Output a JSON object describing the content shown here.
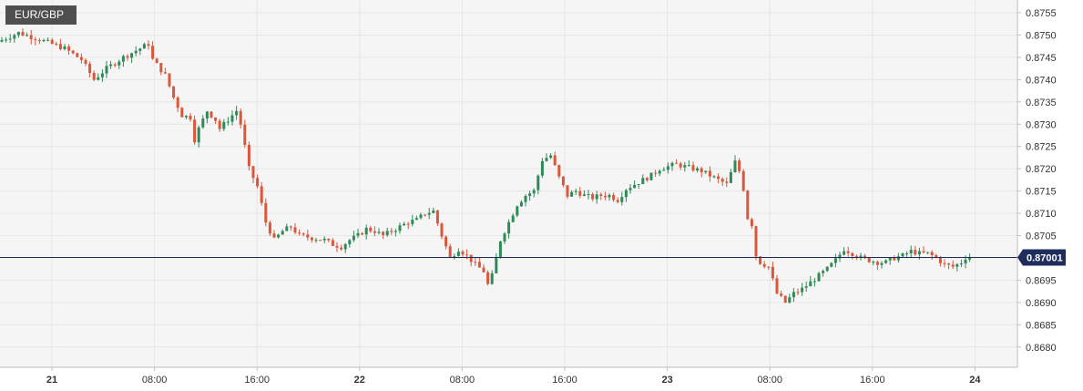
{
  "header": {
    "symbol": "EUR/GBP"
  },
  "chart_data": {
    "type": "candlestick",
    "title": "EUR/GBP",
    "y_ticks": [
      "0.8755",
      "0.8750",
      "0.8745",
      "0.8740",
      "0.8735",
      "0.8730",
      "0.8725",
      "0.8720",
      "0.8715",
      "0.8710",
      "0.8705",
      "0.8700",
      "0.8695",
      "0.8690",
      "0.8685",
      "0.8680"
    ],
    "x_ticks": [
      {
        "label": "21",
        "bold": true
      },
      {
        "label": "08:00",
        "bold": false
      },
      {
        "label": "16:00",
        "bold": false
      },
      {
        "label": "22",
        "bold": true
      },
      {
        "label": "08:00",
        "bold": false
      },
      {
        "label": "16:00",
        "bold": false
      },
      {
        "label": "23",
        "bold": true
      },
      {
        "label": "08:00",
        "bold": false
      },
      {
        "label": "16:00",
        "bold": false
      },
      {
        "label": "24",
        "bold": true
      }
    ],
    "current_price": "0.87001",
    "current_value": 0.87001,
    "ylim": [
      0.8677,
      0.8758
    ],
    "colors": {
      "up": "#2e8b57",
      "down": "#d9573b",
      "line": "#1f2d5c",
      "grid": "#e6e6e6",
      "bg": "#f5f5f5"
    },
    "price_path": [
      [
        0,
        0.87485
      ],
      [
        5,
        0.87505
      ],
      [
        10,
        0.8749
      ],
      [
        16,
        0.8747
      ],
      [
        20,
        0.87445
      ],
      [
        23,
        0.874
      ],
      [
        26,
        0.87425
      ],
      [
        30,
        0.8745
      ],
      [
        33,
        0.87465
      ],
      [
        36,
        0.8748
      ],
      [
        37,
        0.87445
      ],
      [
        40,
        0.8741
      ],
      [
        42,
        0.8736
      ],
      [
        44,
        0.8732
      ],
      [
        46,
        0.87315
      ],
      [
        47,
        0.87265
      ],
      [
        48,
        0.8729
      ],
      [
        50,
        0.8733
      ],
      [
        52,
        0.8731
      ],
      [
        53,
        0.8729
      ],
      [
        55,
        0.8731
      ],
      [
        57,
        0.8733
      ],
      [
        58,
        0.873
      ],
      [
        60,
        0.872
      ],
      [
        62,
        0.8716
      ],
      [
        64,
        0.8708
      ],
      [
        66,
        0.8704
      ],
      [
        68,
        0.8706
      ],
      [
        70,
        0.8707
      ],
      [
        72,
        0.8705
      ],
      [
        75,
        0.87045
      ],
      [
        78,
        0.8704
      ],
      [
        80,
        0.8703
      ],
      [
        82,
        0.87025
      ],
      [
        84,
        0.8704
      ],
      [
        86,
        0.8705
      ],
      [
        88,
        0.87065
      ],
      [
        90,
        0.8706
      ],
      [
        92,
        0.8705
      ],
      [
        94,
        0.8706
      ],
      [
        96,
        0.8707
      ],
      [
        98,
        0.8708
      ],
      [
        100,
        0.87085
      ],
      [
        102,
        0.871
      ],
      [
        104,
        0.87105
      ],
      [
        106,
        0.8705
      ],
      [
        108,
        0.87
      ],
      [
        110,
        0.8702
      ],
      [
        112,
        0.87005
      ],
      [
        114,
        0.86985
      ],
      [
        116,
        0.8697
      ],
      [
        117,
        0.8694
      ],
      [
        118,
        0.8696
      ],
      [
        120,
        0.8704
      ],
      [
        122,
        0.8708
      ],
      [
        124,
        0.8712
      ],
      [
        126,
        0.8714
      ],
      [
        128,
        0.8715
      ],
      [
        130,
        0.8722
      ],
      [
        132,
        0.8723
      ],
      [
        134,
        0.8718
      ],
      [
        136,
        0.8714
      ],
      [
        138,
        0.8715
      ],
      [
        140,
        0.8714
      ],
      [
        142,
        0.87135
      ],
      [
        144,
        0.8714
      ],
      [
        146,
        0.8714
      ],
      [
        148,
        0.8713
      ],
      [
        150,
        0.87155
      ],
      [
        152,
        0.87165
      ],
      [
        154,
        0.87175
      ],
      [
        156,
        0.87185
      ],
      [
        158,
        0.872
      ],
      [
        160,
        0.87205
      ],
      [
        162,
        0.8721
      ],
      [
        164,
        0.87205
      ],
      [
        166,
        0.872
      ],
      [
        168,
        0.87195
      ],
      [
        170,
        0.87185
      ],
      [
        172,
        0.87175
      ],
      [
        174,
        0.87165
      ],
      [
        176,
        0.87215
      ],
      [
        177,
        0.87195
      ],
      [
        178,
        0.87155
      ],
      [
        179,
        0.8709
      ],
      [
        180,
        0.87075
      ],
      [
        181,
        0.87005
      ],
      [
        182,
        0.8699
      ],
      [
        184,
        0.8698
      ],
      [
        186,
        0.8692
      ],
      [
        188,
        0.869
      ],
      [
        190,
        0.8692
      ],
      [
        192,
        0.8693
      ],
      [
        194,
        0.86945
      ],
      [
        196,
        0.8696
      ],
      [
        198,
        0.86975
      ],
      [
        200,
        0.86995
      ],
      [
        202,
        0.8702
      ],
      [
        204,
        0.8701
      ],
      [
        206,
        0.87
      ],
      [
        208,
        0.86995
      ],
      [
        210,
        0.8699
      ],
      [
        212,
        0.8699
      ],
      [
        214,
        0.87
      ],
      [
        216,
        0.87005
      ],
      [
        218,
        0.87015
      ],
      [
        220,
        0.8701
      ],
      [
        222,
        0.8701
      ],
      [
        224,
        0.87
      ],
      [
        226,
        0.86985
      ],
      [
        228,
        0.8698
      ],
      [
        230,
        0.8699
      ],
      [
        231,
        0.87001
      ]
    ]
  }
}
